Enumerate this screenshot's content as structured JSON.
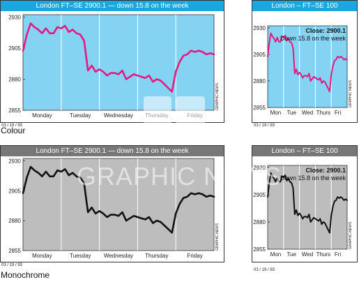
{
  "colors": {
    "colour_header": "#1aa7df",
    "colour_plot": "#84d3f3",
    "colour_line": "#e6197e",
    "mono_header": "#777777",
    "mono_plot": "#bdbdbd",
    "mono_line": "#111111",
    "watermark": "#ffffff"
  },
  "labels": {
    "colour": "Colour",
    "monochrome": "Monochrome"
  },
  "watermark": {
    "text": "GRAPHIC NEWS"
  },
  "panels": {
    "colour_large": {
      "title": "London FT–SE 2900.1 — down 15.8 on the week",
      "date": "03 / 19 / 93",
      "credit": "GRAPHIC NEWS"
    },
    "colour_small": {
      "title": "London – FT–SE 100",
      "annot1": "Close: 2900.1",
      "annot2": "Down 15.8 on the week",
      "date": "03 / 19 / 93",
      "credit": "GRAPHIC NEWS"
    },
    "mono_large": {
      "title": "London FT–SE 2900.1 — down 15.8 on the week",
      "date": "03 / 19 / 93",
      "credit": "GRAPHIC NEWS"
    },
    "mono_small": {
      "title": "London – FT–SE 100",
      "annot1": "Close: 2900.1",
      "annot2": "Down 15.8 on the week",
      "date": "03 / 19 / 93",
      "credit": "GRAPHIC NEWS"
    }
  },
  "chart_data": {
    "type": "line",
    "title": "London FT–SE 2900.1 — down 15.8 on the week",
    "series": [
      {
        "x": [
          0.0,
          0.1,
          0.2,
          0.3,
          0.4,
          0.5,
          0.6,
          0.7,
          0.8,
          0.9,
          1.0,
          1.1,
          1.2,
          1.3,
          1.4,
          1.5,
          1.6,
          1.7,
          1.8,
          1.9,
          2.0,
          2.1,
          2.2,
          2.3,
          2.4,
          2.5,
          2.6,
          2.7,
          2.8,
          2.9,
          3.0,
          3.1,
          3.2,
          3.3,
          3.4,
          3.5,
          3.6,
          3.7,
          3.8,
          3.9,
          4.0,
          4.1,
          4.2,
          4.3,
          4.4,
          4.5,
          4.6,
          4.7,
          4.8,
          4.9,
          5.0
        ],
        "values": [
          2903,
          2916,
          2925,
          2922,
          2920,
          2917,
          2921,
          2917,
          2917,
          2922,
          2921,
          2923,
          2918,
          2920,
          2917,
          2916,
          2911,
          2887,
          2891,
          2886,
          2888,
          2886,
          2883,
          2885,
          2885,
          2884,
          2887,
          2880,
          2882,
          2884,
          2883,
          2882,
          2881,
          2883,
          2878,
          2880,
          2879,
          2876,
          2873,
          2870,
          2886,
          2894,
          2899,
          2900,
          2903,
          2902,
          2903,
          2902,
          2900,
          2901,
          2900
        ]
      }
    ],
    "categories": [
      "Monday",
      "Tuesday",
      "Wednesday",
      "Thursday",
      "Friday"
    ],
    "categories_short": [
      "Mon",
      "Tue",
      "Wed",
      "Thurs",
      "Fri"
    ],
    "yticks": [
      2930,
      2905,
      2880,
      2855
    ],
    "ylim": [
      2855,
      2932
    ],
    "xlim": [
      0,
      5
    ],
    "grid": true,
    "close": 2900.1,
    "weekly_change": -15.8
  }
}
